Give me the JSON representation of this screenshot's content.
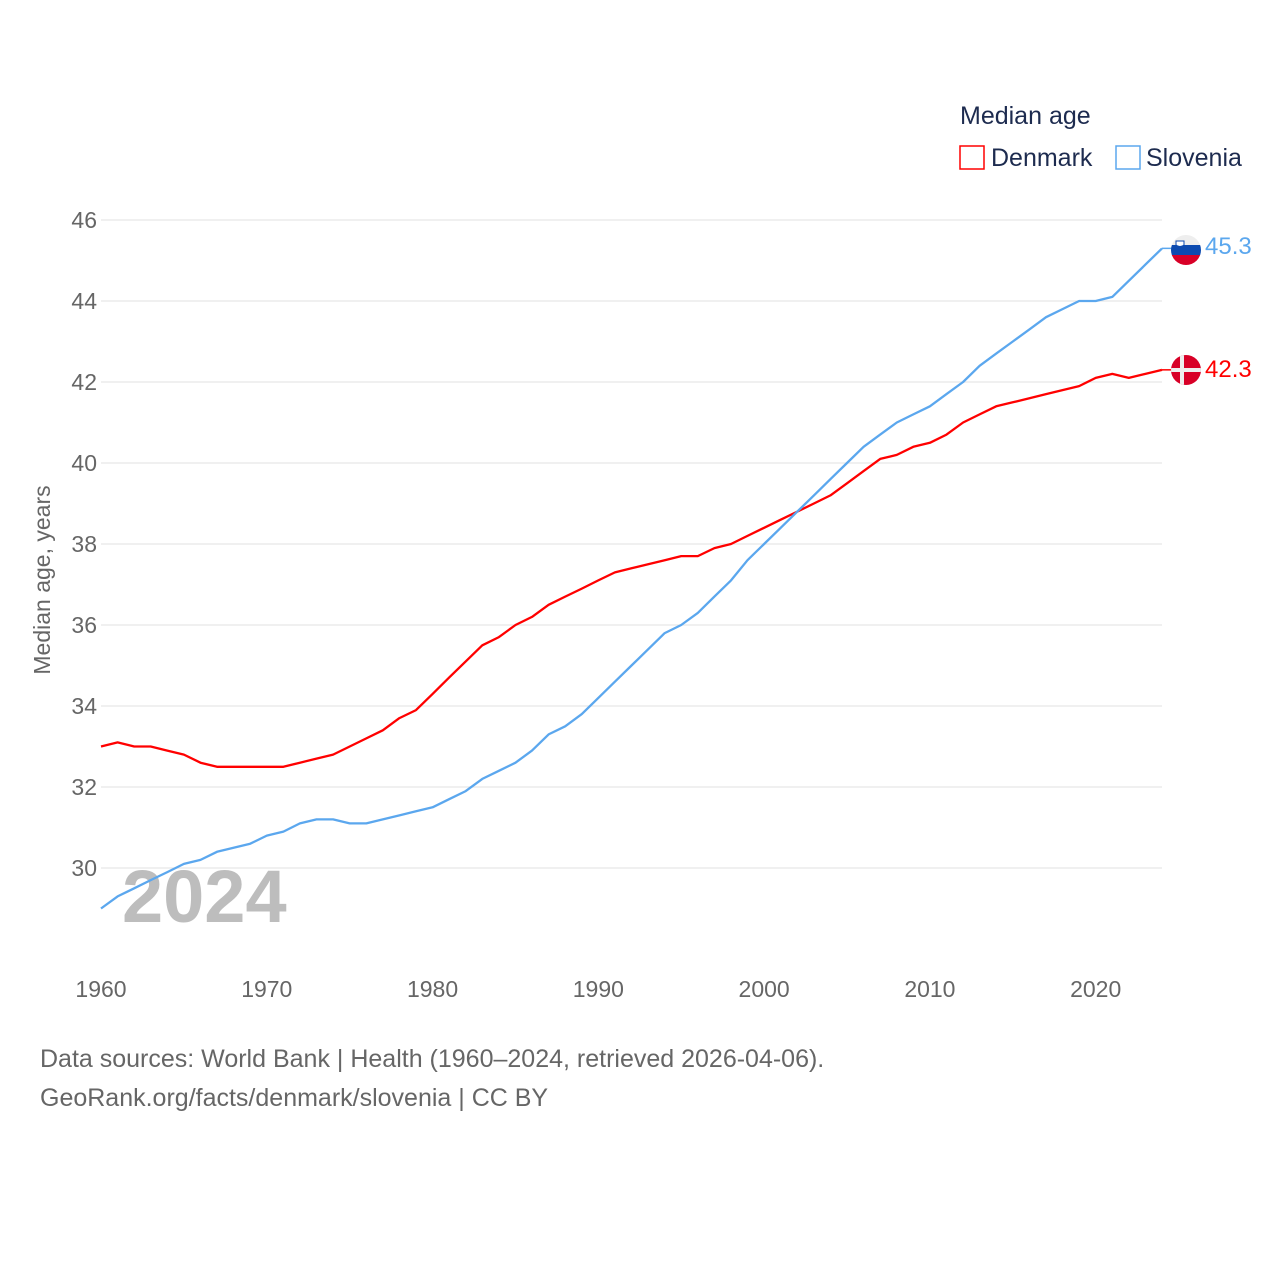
{
  "chart_data": {
    "type": "line",
    "title": "",
    "xlabel": "",
    "ylabel": "Median age, years",
    "xlim": [
      1960,
      2024
    ],
    "ylim": [
      28.5,
      46
    ],
    "x_ticks": [
      1960,
      1970,
      1980,
      1990,
      2000,
      2010,
      2020
    ],
    "y_ticks": [
      30,
      32,
      34,
      36,
      38,
      40,
      42,
      44,
      46
    ],
    "grid": true,
    "legend": {
      "title": "Median age",
      "placement": "top-right"
    },
    "watermark_year": "2024",
    "x": [
      1960,
      1961,
      1962,
      1963,
      1964,
      1965,
      1966,
      1967,
      1968,
      1969,
      1970,
      1971,
      1972,
      1973,
      1974,
      1975,
      1976,
      1977,
      1978,
      1979,
      1980,
      1981,
      1982,
      1983,
      1984,
      1985,
      1986,
      1987,
      1988,
      1989,
      1990,
      1991,
      1992,
      1993,
      1994,
      1995,
      1996,
      1997,
      1998,
      1999,
      2000,
      2001,
      2002,
      2003,
      2004,
      2005,
      2006,
      2007,
      2008,
      2009,
      2010,
      2011,
      2012,
      2013,
      2014,
      2015,
      2016,
      2017,
      2018,
      2019,
      2020,
      2021,
      2022,
      2023,
      2024
    ],
    "series": [
      {
        "name": "Denmark",
        "color": "#ff0000",
        "end_label": "42.3",
        "values": [
          33.0,
          33.1,
          33.0,
          33.0,
          32.9,
          32.8,
          32.6,
          32.5,
          32.5,
          32.5,
          32.5,
          32.5,
          32.6,
          32.7,
          32.8,
          33.0,
          33.2,
          33.4,
          33.7,
          33.9,
          34.3,
          34.7,
          35.1,
          35.5,
          35.7,
          36.0,
          36.2,
          36.5,
          36.7,
          36.9,
          37.1,
          37.3,
          37.4,
          37.5,
          37.6,
          37.7,
          37.7,
          37.9,
          38.0,
          38.2,
          38.4,
          38.6,
          38.8,
          39.0,
          39.2,
          39.5,
          39.8,
          40.1,
          40.2,
          40.4,
          40.5,
          40.7,
          41.0,
          41.2,
          41.4,
          41.5,
          41.6,
          41.7,
          41.8,
          41.9,
          42.1,
          42.2,
          42.1,
          42.2,
          42.3
        ]
      },
      {
        "name": "Slovenia",
        "color": "#5ba7ee",
        "end_label": "45.3",
        "values": [
          29.0,
          29.3,
          29.5,
          29.7,
          29.9,
          30.1,
          30.2,
          30.4,
          30.5,
          30.6,
          30.8,
          30.9,
          31.1,
          31.2,
          31.2,
          31.1,
          31.1,
          31.2,
          31.3,
          31.4,
          31.5,
          31.7,
          31.9,
          32.2,
          32.4,
          32.6,
          32.9,
          33.3,
          33.5,
          33.8,
          34.2,
          34.6,
          35.0,
          35.4,
          35.8,
          36.0,
          36.3,
          36.7,
          37.1,
          37.6,
          38.0,
          38.4,
          38.8,
          39.2,
          39.6,
          40.0,
          40.4,
          40.7,
          41.0,
          41.2,
          41.4,
          41.7,
          42.0,
          42.4,
          42.7,
          43.0,
          43.3,
          43.6,
          43.8,
          44.0,
          44.0,
          44.1,
          44.5,
          44.9,
          45.3
        ]
      }
    ]
  },
  "footer": {
    "line1": "Data sources: World Bank | Health (1960–2024, retrieved 2026-04-06).",
    "line2": "GeoRank.org/facts/denmark/slovenia | CC BY"
  }
}
